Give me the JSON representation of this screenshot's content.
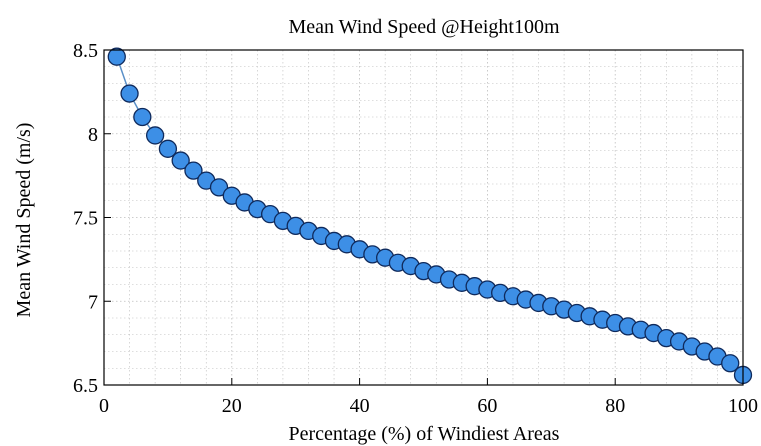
{
  "chart_data": {
    "type": "line",
    "title": "Mean Wind Speed @Height100m",
    "xlabel": "Percentage (%) of Windiest Areas",
    "ylabel": "Mean Wind Speed (m/s)",
    "xlim": [
      0,
      100
    ],
    "ylim": [
      6.5,
      8.5
    ],
    "x_ticks": [
      "0",
      "20",
      "40",
      "60",
      "80",
      "100"
    ],
    "y_ticks": [
      "6.5",
      "7",
      "7.5",
      "8",
      "8.5"
    ],
    "grid": true,
    "legend": "none",
    "marker": "circle",
    "colors": {
      "marker_fill": "#3d8fe6",
      "marker_edge": "#0f2a5c",
      "line": "#5a90c8",
      "grid": "#bdbdbd"
    },
    "series": [
      {
        "x": [
          2,
          4,
          6,
          8,
          10,
          12,
          14,
          16,
          18,
          20,
          22,
          24,
          26,
          28,
          30,
          32,
          34,
          36,
          38,
          40,
          42,
          44,
          46,
          48,
          50,
          52,
          54,
          56,
          58,
          60,
          62,
          64,
          66,
          68,
          70,
          72,
          74,
          76,
          78,
          80,
          82,
          84,
          86,
          88,
          90,
          92,
          94,
          96,
          98,
          100
        ],
        "y": [
          8.46,
          8.24,
          8.1,
          7.99,
          7.91,
          7.84,
          7.78,
          7.72,
          7.68,
          7.63,
          7.59,
          7.55,
          7.52,
          7.48,
          7.45,
          7.42,
          7.39,
          7.36,
          7.34,
          7.31,
          7.28,
          7.26,
          7.23,
          7.21,
          7.18,
          7.16,
          7.13,
          7.11,
          7.09,
          7.07,
          7.05,
          7.03,
          7.01,
          6.99,
          6.97,
          6.95,
          6.93,
          6.91,
          6.89,
          6.87,
          6.85,
          6.83,
          6.81,
          6.78,
          6.76,
          6.73,
          6.7,
          6.67,
          6.63,
          6.56
        ]
      }
    ]
  }
}
